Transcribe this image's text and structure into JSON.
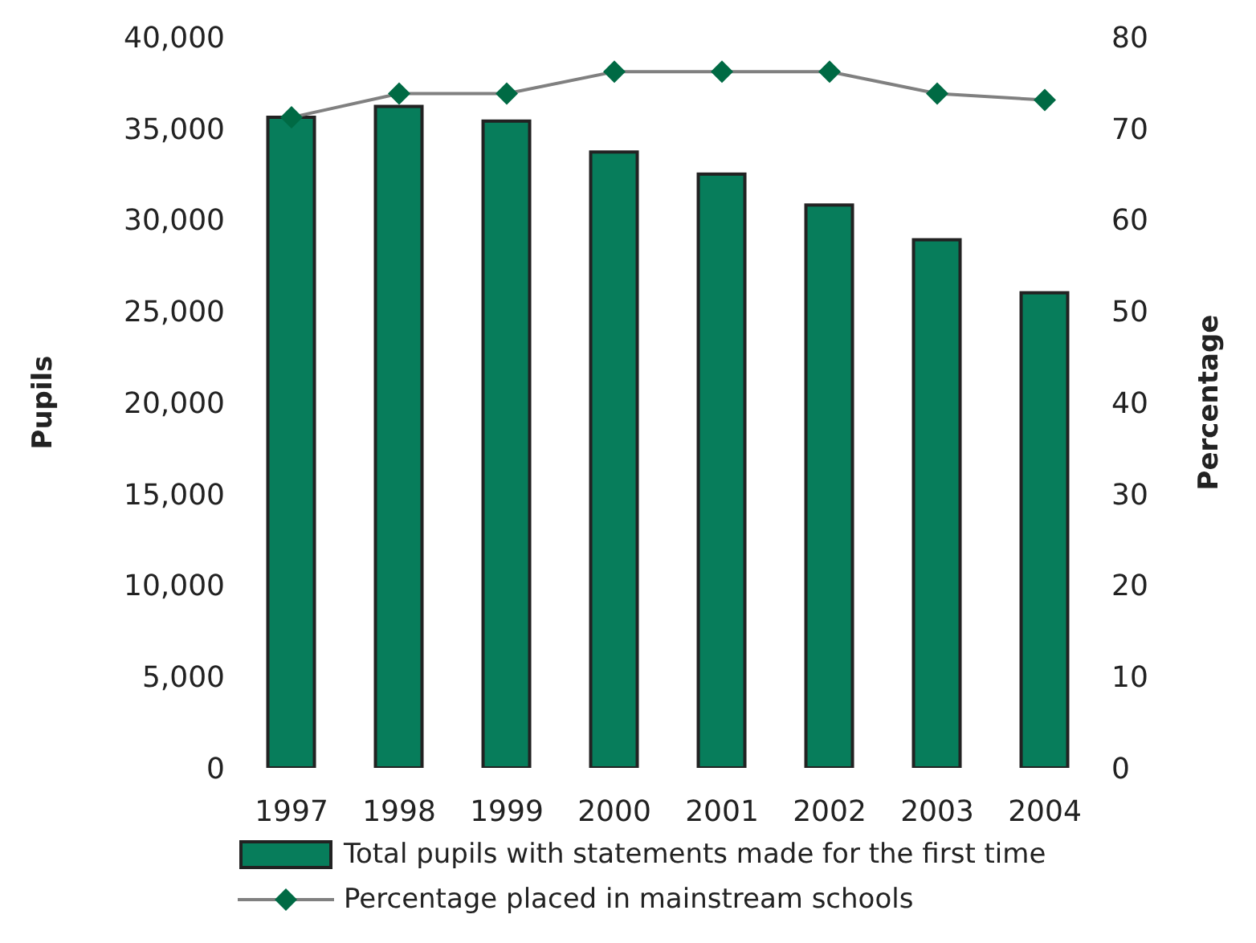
{
  "chart_data": {
    "type": "bar",
    "categories": [
      "1997",
      "1998",
      "1999",
      "2000",
      "2001",
      "2002",
      "2003",
      "2004"
    ],
    "ylabel": "Pupils",
    "y2label": "Percentage",
    "series": [
      {
        "name": "Total pupils with statements made for the first time",
        "color": "#077d5b",
        "values": [
          35600,
          36200,
          35400,
          33700,
          32500,
          30800,
          28900,
          26000
        ]
      },
      {
        "name": "Percentage placed in mainstream schools",
        "type": "line",
        "axis": "y2",
        "color": "#006a44",
        "values": [
          71.2,
          73.8,
          73.8,
          76.2,
          76.2,
          76.2,
          73.8,
          73.1
        ]
      }
    ],
    "ylim": [
      0,
      40000
    ],
    "yticks": [
      0,
      {
        "value": 5000,
        "label": "5,000"
      },
      {
        "value": 10000,
        "label": "10,000"
      },
      {
        "value": 15000,
        "label": "15,000"
      },
      {
        "value": 20000,
        "label": "20,000"
      },
      {
        "value": 25000,
        "label": "25,000"
      },
      {
        "value": 30000,
        "label": "30,000"
      },
      {
        "value": 35000,
        "label": "35,000"
      },
      {
        "value": 40000,
        "label": "40,000"
      }
    ],
    "y2lim": [
      0,
      80
    ],
    "y2ticks": [
      0,
      10,
      20,
      30,
      40,
      50,
      60,
      70,
      80
    ],
    "marker": "diamond",
    "legend": "bottom",
    "grid": false
  }
}
